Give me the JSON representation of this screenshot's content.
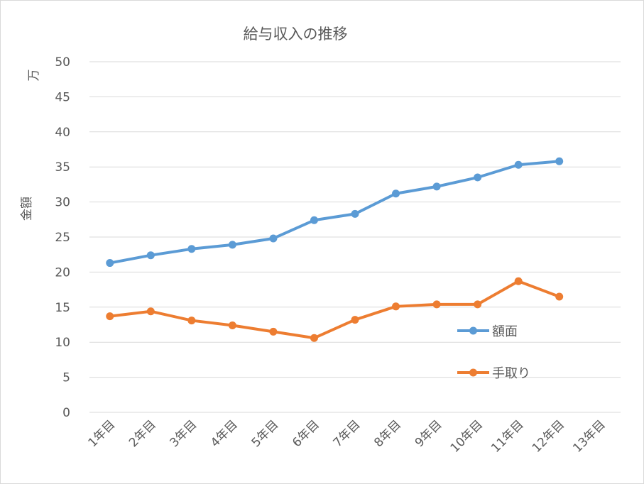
{
  "chart_data": {
    "type": "line",
    "title": "給与収入の推移",
    "ylabel_unit": "万",
    "ylabel": "金額",
    "ylim": [
      0,
      50
    ],
    "yticks": [
      0,
      5,
      10,
      15,
      20,
      25,
      30,
      35,
      40,
      45,
      50
    ],
    "grid": true,
    "legend_position": "right",
    "categories": [
      "1年目",
      "2年目",
      "3年目",
      "4年目",
      "5年目",
      "6年目",
      "7年目",
      "8年目",
      "9年目",
      "10年目",
      "11年目",
      "12年目",
      "13年目"
    ],
    "series": [
      {
        "name": "額面",
        "color": "#5b9bd5",
        "values": [
          21.3,
          22.4,
          23.3,
          23.9,
          24.8,
          27.4,
          28.3,
          31.2,
          32.2,
          33.5,
          35.3,
          35.8,
          null
        ]
      },
      {
        "name": "手取り",
        "color": "#ed7d31",
        "values": [
          13.7,
          14.4,
          13.1,
          12.4,
          11.5,
          10.6,
          13.2,
          15.1,
          15.4,
          15.4,
          18.7,
          16.5,
          null
        ]
      }
    ]
  }
}
